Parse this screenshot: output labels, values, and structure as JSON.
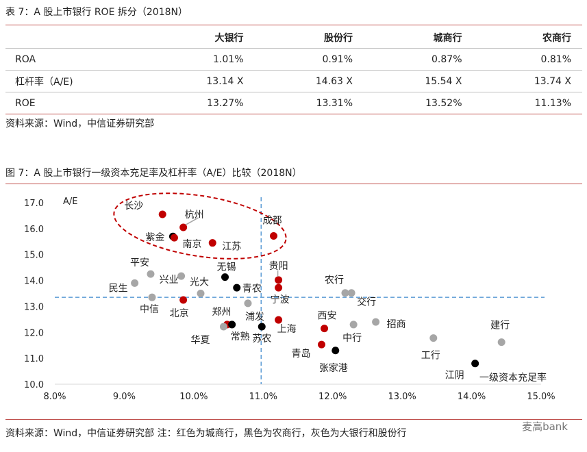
{
  "table": {
    "title": "表 7：A 股上市银行 ROE 拆分（2018N）",
    "columns": [
      "",
      "大银行",
      "股份行",
      "城商行",
      "农商行"
    ],
    "rows": [
      {
        "label": "ROA",
        "values": [
          "1.01%",
          "0.91%",
          "0.87%",
          "0.81%"
        ]
      },
      {
        "label": "杠杆率（A/E)",
        "values": [
          "13.14 X",
          "14.63 X",
          "15.54 X",
          "13.74 X"
        ]
      },
      {
        "label": "ROE",
        "values": [
          "13.27%",
          "13.31%",
          "13.52%",
          "11.13%"
        ]
      }
    ],
    "source": "资料来源：Wind，中信证券研究部"
  },
  "figure": {
    "title": "图 7：A 股上市银行一级资本充足率及杠杆率（A/E）比较（2018N）",
    "source": "资料来源：Wind，中信证券研究部    注：红色为城商行，黑色为农商行，灰色为大银行和股份行",
    "watermark": "麦高bank"
  },
  "chart_data": {
    "type": "scatter",
    "ylabel": "A/E",
    "xlabel": "一级资本充足率",
    "xlim": [
      8.0,
      15.0
    ],
    "ylim": [
      10.0,
      17.0
    ],
    "x_ticks": [
      "8.0%",
      "9.0%",
      "10.0%",
      "11.0%",
      "12.0%",
      "13.0%",
      "14.0%",
      "15.0%"
    ],
    "y_ticks": [
      "10.0",
      "11.0",
      "12.0",
      "13.0",
      "14.0",
      "15.0",
      "16.0",
      "17.0"
    ],
    "ref_lines": {
      "x": 10.97,
      "y": 13.35
    },
    "colors": {
      "city": "#c00000",
      "rural": "#000000",
      "big_joint": "#a6a6a6",
      "ref": "#5b9bd5",
      "ellipse": "#c00000"
    },
    "points": [
      {
        "name": "长沙",
        "x": 9.55,
        "y": 16.55,
        "group": "city"
      },
      {
        "name": "杭州",
        "x": 9.85,
        "y": 16.05,
        "group": "city"
      },
      {
        "name": "紫金",
        "x": 9.7,
        "y": 15.7,
        "group": "rural"
      },
      {
        "name": "南京",
        "x": 9.72,
        "y": 15.65,
        "group": "city"
      },
      {
        "name": "江苏",
        "x": 10.27,
        "y": 15.45,
        "group": "city"
      },
      {
        "name": "成都",
        "x": 11.15,
        "y": 15.72,
        "group": "city"
      },
      {
        "name": "平安",
        "x": 9.38,
        "y": 14.25,
        "group": "big_joint"
      },
      {
        "name": "兴业",
        "x": 9.82,
        "y": 14.17,
        "group": "big_joint"
      },
      {
        "name": "无锡",
        "x": 10.45,
        "y": 14.13,
        "group": "rural"
      },
      {
        "name": "光大",
        "x": 10.1,
        "y": 13.5,
        "group": "big_joint"
      },
      {
        "name": "民生",
        "x": 9.15,
        "y": 13.9,
        "group": "big_joint"
      },
      {
        "name": "青农",
        "x": 10.62,
        "y": 13.72,
        "group": "rural"
      },
      {
        "name": "贵阳",
        "x": 11.22,
        "y": 14.02,
        "group": "city"
      },
      {
        "name": "宁波",
        "x": 11.22,
        "y": 13.72,
        "group": "city"
      },
      {
        "name": "中信",
        "x": 9.4,
        "y": 13.35,
        "group": "big_joint"
      },
      {
        "name": "北京",
        "x": 9.85,
        "y": 13.25,
        "group": "city"
      },
      {
        "name": "浦发",
        "x": 10.78,
        "y": 13.12,
        "group": "big_joint"
      },
      {
        "name": "农行",
        "x": 12.18,
        "y": 13.52,
        "group": "big_joint"
      },
      {
        "name": "交行",
        "x": 12.27,
        "y": 13.52,
        "group": "big_joint"
      },
      {
        "name": "郑州",
        "x": 10.48,
        "y": 12.3,
        "group": "city"
      },
      {
        "name": "常熟",
        "x": 10.55,
        "y": 12.3,
        "group": "rural"
      },
      {
        "name": "华夏",
        "x": 10.43,
        "y": 12.22,
        "group": "big_joint"
      },
      {
        "name": "苏农",
        "x": 10.98,
        "y": 12.22,
        "group": "rural"
      },
      {
        "name": "上海",
        "x": 11.22,
        "y": 12.48,
        "group": "city"
      },
      {
        "name": "西安",
        "x": 11.88,
        "y": 12.15,
        "group": "city"
      },
      {
        "name": "中行",
        "x": 12.3,
        "y": 12.3,
        "group": "big_joint"
      },
      {
        "name": "招商",
        "x": 12.62,
        "y": 12.4,
        "group": "big_joint"
      },
      {
        "name": "青岛",
        "x": 11.84,
        "y": 11.53,
        "group": "city"
      },
      {
        "name": "张家港",
        "x": 12.04,
        "y": 11.3,
        "group": "rural"
      },
      {
        "name": "工行",
        "x": 13.45,
        "y": 11.78,
        "group": "big_joint"
      },
      {
        "name": "建行",
        "x": 14.43,
        "y": 11.62,
        "group": "big_joint"
      },
      {
        "name": "江阴",
        "x": 14.05,
        "y": 10.8,
        "group": "rural"
      }
    ]
  }
}
